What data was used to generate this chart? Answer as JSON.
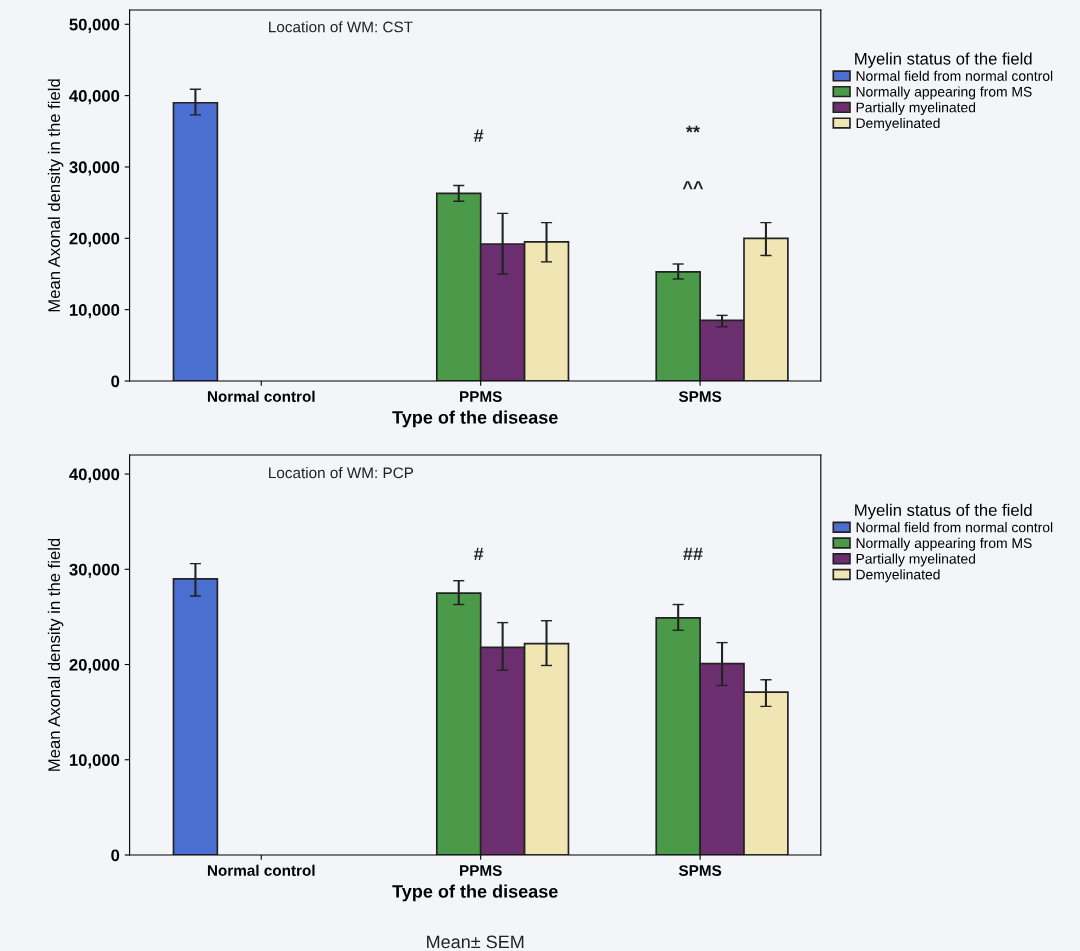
{
  "chart_data": [
    {
      "type": "bar",
      "categories": [
        "Normal control",
        "PPMS",
        "SPMS"
      ],
      "xlabel": "Type of the disease",
      "ylabel": "Mean Axonal density in the field",
      "legend_title": "Myelin status of the field",
      "legend": "right",
      "grid": false,
      "ylim": [
        0,
        52000
      ],
      "yticks": [
        {
          "value": 0,
          "label": "0"
        },
        {
          "value": 10000,
          "label": "10,000"
        },
        {
          "value": 20000,
          "label": "20,000"
        },
        {
          "value": 30000,
          "label": "30,000"
        },
        {
          "value": 40000,
          "label": "40,000"
        },
        {
          "value": 50000,
          "label": "50,000"
        }
      ],
      "series": [
        {
          "name": "Normal field from normal control",
          "color": "#4a6fd0",
          "values": [
            39000,
            null,
            null
          ],
          "errors": [
            [
              37300,
              40900
            ],
            null,
            null
          ]
        },
        {
          "name": "Normally appearing from MS",
          "color": "#4a9a4a",
          "values": [
            null,
            26300,
            15300
          ],
          "errors": [
            null,
            [
              25200,
              27400
            ],
            [
              14300,
              16400
            ]
          ]
        },
        {
          "name": "Partially myelinated",
          "color": "#6b2f6f",
          "values": [
            null,
            19200,
            8500
          ],
          "errors": [
            null,
            [
              15000,
              23500
            ],
            [
              7600,
              9200
            ]
          ]
        },
        {
          "name": "Demyelinated",
          "color": "#efe6b4",
          "values": [
            null,
            19500,
            20000
          ],
          "errors": [
            null,
            [
              16700,
              22200
            ],
            [
              17600,
              22200
            ]
          ]
        }
      ],
      "annotations": [
        "Location of WM: CST",
        "#",
        "**",
        "^^"
      ]
    },
    {
      "type": "bar",
      "categories": [
        "Normal control",
        "PPMS",
        "SPMS"
      ],
      "xlabel": "Type of the disease",
      "ylabel": "Mean Axonal density in the field",
      "legend_title": "Myelin status of the field",
      "legend": "right",
      "grid": false,
      "ylim": [
        0,
        42000
      ],
      "yticks": [
        {
          "value": 0,
          "label": "0"
        },
        {
          "value": 10000,
          "label": "10,000"
        },
        {
          "value": 20000,
          "label": "20,000"
        },
        {
          "value": 30000,
          "label": "30,000"
        },
        {
          "value": 40000,
          "label": "40,000"
        }
      ],
      "series": [
        {
          "name": "Normal field from normal control",
          "color": "#4a6fd0",
          "values": [
            29000,
            null,
            null
          ],
          "errors": [
            [
              27200,
              30600
            ],
            null,
            null
          ]
        },
        {
          "name": "Normally appearing from MS",
          "color": "#4a9a4a",
          "values": [
            null,
            27500,
            24900
          ],
          "errors": [
            null,
            [
              26300,
              28800
            ],
            [
              23600,
              26300
            ]
          ]
        },
        {
          "name": "Partially myelinated",
          "color": "#6b2f6f",
          "values": [
            null,
            21800,
            20100
          ],
          "errors": [
            null,
            [
              19400,
              24400
            ],
            [
              17800,
              22300
            ]
          ]
        },
        {
          "name": "Demyelinated",
          "color": "#efe6b4",
          "values": [
            null,
            22200,
            17100
          ],
          "errors": [
            null,
            [
              19900,
              24600
            ],
            [
              15600,
              18400
            ]
          ]
        }
      ],
      "annotations": [
        "Location of WM: PCP",
        "#",
        "##",
        "Mean± SEM"
      ]
    }
  ]
}
